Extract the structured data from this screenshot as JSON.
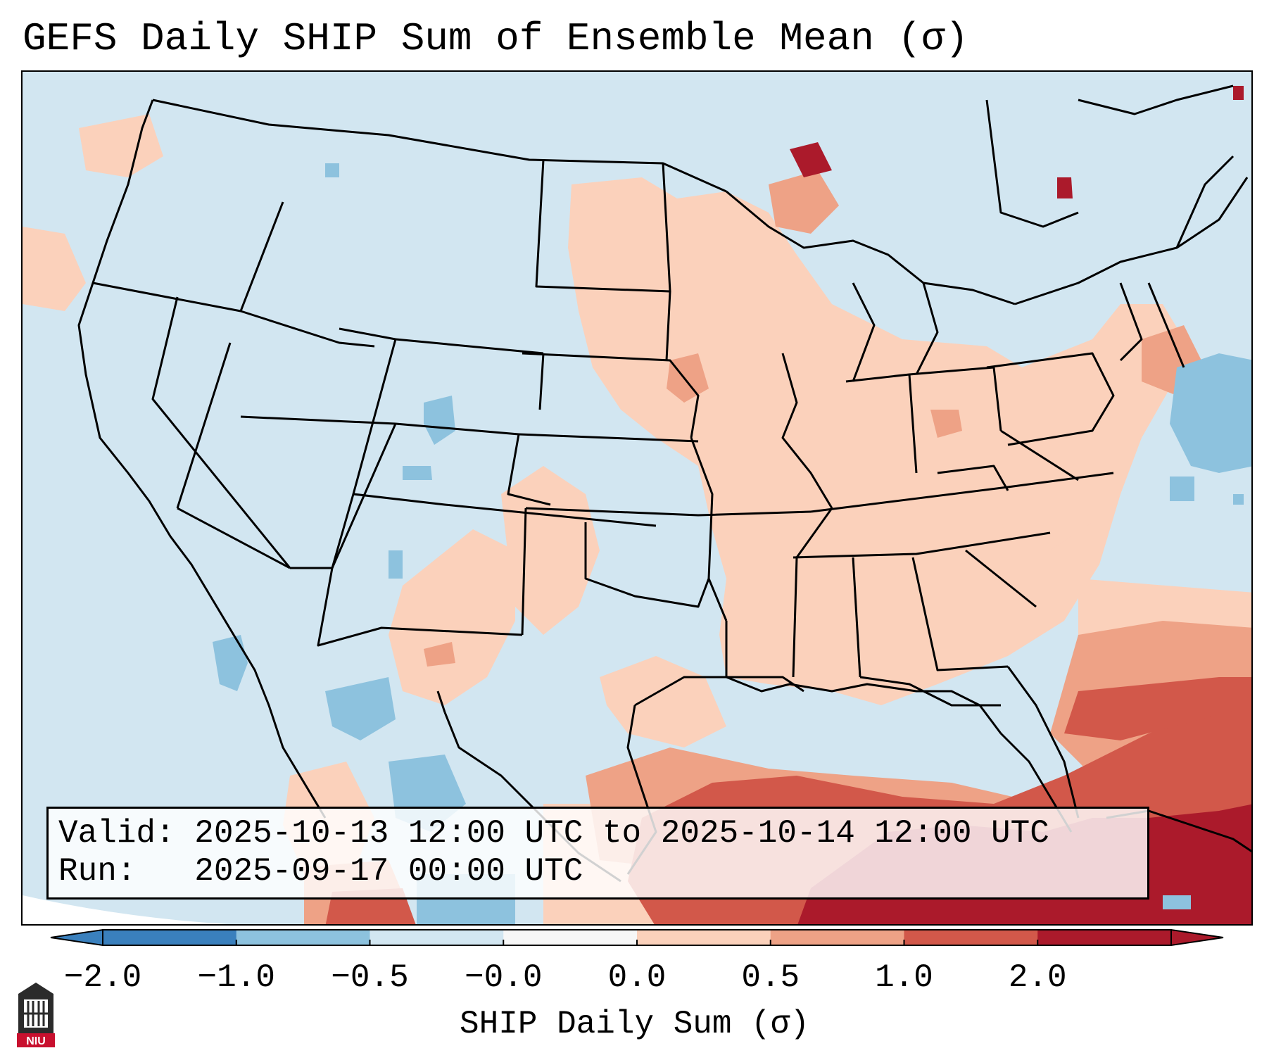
{
  "title": "GEFS Daily SHIP Sum of Ensemble Mean (σ)",
  "info": {
    "valid_label": "Valid:",
    "valid_value": "2025-10-13 12:00 UTC to 2025-10-14 12:00 UTC",
    "run_label": "Run:  ",
    "run_value": "2025-09-17 00:00 UTC"
  },
  "colorbar": {
    "label": "SHIP Daily Sum (σ)",
    "ticks": [
      "−2.0",
      "−1.0",
      "−0.5",
      "−0.0",
      "0.0",
      "0.5",
      "1.0",
      "2.0"
    ],
    "colors": [
      "#3a80bd",
      "#8dc2de",
      "#d2e6f1",
      "#f7f7f7",
      "#fbd1bb",
      "#eea286",
      "#d2584a",
      "#ab1a2b"
    ],
    "extend": "both"
  },
  "map": {
    "region": "CONUS",
    "variable": "SHIP",
    "statistic": "Ensemble Mean Daily Sum"
  },
  "logo": {
    "text": "NIU",
    "icon": "niu-logo-icon",
    "color": "#c8102e"
  }
}
